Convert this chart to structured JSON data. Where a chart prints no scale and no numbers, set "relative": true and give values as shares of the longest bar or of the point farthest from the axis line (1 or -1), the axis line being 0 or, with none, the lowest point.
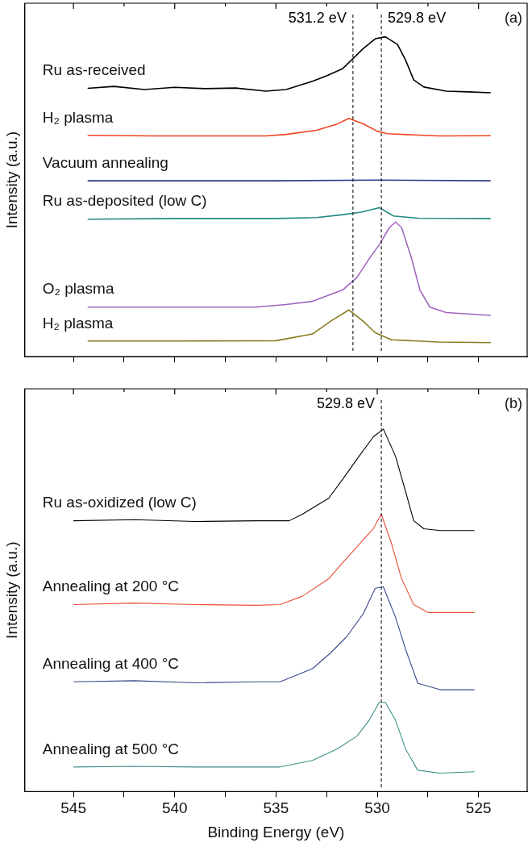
{
  "chart_data": [
    {
      "type": "line",
      "relative": true,
      "ylabel": "Intensity (a.u.)",
      "xlim": [
        547.4,
        522.6
      ],
      "xticks": [
        545,
        {
          "value": 542.5,
          "label": null
        },
        540,
        {
          "value": 537.5,
          "label": null
        },
        535,
        {
          "value": 532.5,
          "label": null
        },
        530,
        {
          "value": 527.5,
          "label": null
        },
        525
      ],
      "tick_labels": false,
      "grid": false,
      "legend": false,
      "marker": "none",
      "line_style": "solid",
      "annotations": [
        "(a)"
      ],
      "ref_lines": [
        {
          "axis": "x",
          "value": 531.2,
          "label": "531.2 eV",
          "color": "#000000",
          "line_style": "dashed"
        },
        {
          "axis": "x",
          "value": 529.8,
          "label": "529.8 eV",
          "color": "#000000",
          "line_style": "dashed"
        }
      ],
      "series": [
        {
          "name": "Ru as-received",
          "color": "#000000",
          "x": [
            544.3,
            543,
            541.5,
            540,
            538.5,
            537,
            535.5,
            534.5,
            533.2,
            532.5,
            531.7,
            531.2,
            530.7,
            530.1,
            529.6,
            529.0,
            528.6,
            528.2,
            527.7,
            526.6,
            525.5,
            524.4
          ],
          "values": [
            0.839,
            0.845,
            0.835,
            0.842,
            0.838,
            0.84,
            0.83,
            0.835,
            0.861,
            0.878,
            0.901,
            0.932,
            0.963,
            0.994,
            1,
            0.976,
            0.927,
            0.865,
            0.843,
            0.83,
            0.828,
            0.825
          ]
        },
        {
          "name": "H₂ plasma",
          "color": "#ee4422",
          "x": [
            544.3,
            541,
            538,
            535.5,
            534.5,
            533,
            532,
            531.4,
            530.7,
            530,
            529.5,
            527,
            524.4
          ],
          "values": [
            0.692,
            0.69,
            0.69,
            0.69,
            0.695,
            0.708,
            0.727,
            0.745,
            0.728,
            0.705,
            0.697,
            0.69,
            0.691
          ]
        },
        {
          "name": "Vacuum annealing",
          "color": "#2a3a8c",
          "x": [
            544.3,
            540,
            535,
            530,
            524.4
          ],
          "values": [
            0.55,
            0.55,
            0.55,
            0.552,
            0.55
          ]
        },
        {
          "name": "Ru as-deposited (low C)",
          "color": "#1f8a80",
          "x": [
            544.3,
            540,
            535,
            533,
            531.7,
            530.8,
            529.9,
            529.2,
            528,
            524.4
          ],
          "values": [
            0.43,
            0.432,
            0.432,
            0.435,
            0.444,
            0.452,
            0.466,
            0.44,
            0.433,
            0.432
          ]
        },
        {
          "name": "O₂ plasma",
          "color": "#a066c0",
          "x": [
            544.3,
            540,
            536,
            534.5,
            533.2,
            531.7,
            531,
            530.4,
            529.9,
            529.4,
            529.1,
            528.8,
            528.3,
            527.9,
            527.4,
            526.6,
            524.4
          ],
          "values": [
            0.155,
            0.155,
            0.155,
            0.163,
            0.173,
            0.209,
            0.248,
            0.306,
            0.35,
            0.404,
            0.421,
            0.404,
            0.306,
            0.209,
            0.155,
            0.138,
            0.129
          ]
        },
        {
          "name": "H₂ plasma",
          "color": "#8a7a20",
          "x": [
            544.3,
            540,
            535,
            533.2,
            532.3,
            531.4,
            530.7,
            530.1,
            529.3,
            527,
            524.4
          ],
          "values": [
            0.049,
            0.049,
            0.05,
            0.071,
            0.111,
            0.146,
            0.111,
            0.075,
            0.053,
            0.046,
            0.044
          ]
        }
      ]
    },
    {
      "type": "line",
      "relative": true,
      "ylabel": "Intensity (a.u.)",
      "xlabel": "Binding Energy (eV)",
      "xlim": [
        547.4,
        522.6
      ],
      "xticks": [
        545,
        {
          "value": 542.5,
          "label": null
        },
        540,
        {
          "value": 537.5,
          "label": null
        },
        535,
        {
          "value": 532.5,
          "label": null
        },
        530,
        {
          "value": 527.5,
          "label": null
        },
        525
      ],
      "tick_labels": "x",
      "grid": false,
      "legend": false,
      "marker": "none",
      "line_style": "solid",
      "annotations": [
        "(b)"
      ],
      "ref_lines": [
        {
          "axis": "x",
          "value": 529.8,
          "label": "529.8 eV",
          "color": "#000000",
          "line_style": "dashed"
        }
      ],
      "series": [
        {
          "name": "Ru as-oxidized (low C)",
          "color": "#000000",
          "x": [
            545,
            542,
            539,
            536,
            534.35,
            533.7,
            532.4,
            531.7,
            530.9,
            530.2,
            529.7,
            529.1,
            528.6,
            528.2,
            527.7,
            526.9,
            525.2
          ],
          "values": [
            0.747,
            0.75,
            0.745,
            0.747,
            0.747,
            0.765,
            0.809,
            0.862,
            0.925,
            0.978,
            1,
            0.925,
            0.827,
            0.747,
            0.725,
            0.72,
            0.72
          ]
        },
        {
          "name": "Annealing at 200 °C",
          "color": "#e8503a",
          "x": [
            545,
            542,
            539,
            536,
            534.8,
            533.7,
            532.4,
            531.7,
            530.7,
            530.2,
            529.8,
            529.3,
            528.8,
            528.2,
            527.5,
            525.2
          ],
          "values": [
            0.516,
            0.52,
            0.516,
            0.514,
            0.516,
            0.539,
            0.587,
            0.632,
            0.694,
            0.725,
            0.765,
            0.685,
            0.587,
            0.516,
            0.494,
            0.494
          ]
        },
        {
          "name": "Annealing at 400 °C",
          "color": "#3a4a8a",
          "x": [
            545,
            542,
            539,
            536,
            534.8,
            533.2,
            532.3,
            531.5,
            530.7,
            530.1,
            529.7,
            529.1,
            528.6,
            528,
            526.9,
            525.2
          ],
          "values": [
            0.303,
            0.306,
            0.3,
            0.303,
            0.303,
            0.339,
            0.383,
            0.428,
            0.49,
            0.561,
            0.565,
            0.481,
            0.392,
            0.299,
            0.281,
            0.281
          ]
        },
        {
          "name": "Annealing at 500 °C",
          "color": "#3a9088",
          "x": [
            545,
            542,
            539,
            536,
            534.8,
            533.2,
            532,
            531,
            530.4,
            529.9,
            529.6,
            529.1,
            528.6,
            528,
            526.9,
            525.2
          ],
          "values": [
            0.068,
            0.07,
            0.068,
            0.068,
            0.068,
            0.086,
            0.117,
            0.153,
            0.197,
            0.246,
            0.246,
            0.197,
            0.117,
            0.059,
            0.051,
            0.055
          ]
        }
      ]
    }
  ]
}
